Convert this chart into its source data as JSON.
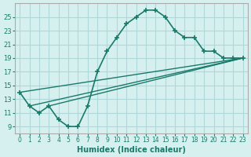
{
  "xlabel": "Humidex (Indice chaleur)",
  "bg_color": "#d6f0f0",
  "grid_color": "#b0d8d8",
  "line_color": "#1a7a6a",
  "xlim": [
    -0.5,
    23.5
  ],
  "ylim": [
    8,
    27
  ],
  "xticks": [
    0,
    1,
    2,
    3,
    4,
    5,
    6,
    7,
    8,
    9,
    10,
    11,
    12,
    13,
    14,
    15,
    16,
    17,
    18,
    19,
    20,
    21,
    22,
    23
  ],
  "yticks": [
    9,
    11,
    13,
    15,
    17,
    19,
    21,
    23,
    25
  ],
  "series1_x": [
    0,
    1,
    2,
    3,
    4,
    5,
    6,
    7,
    8,
    9,
    10,
    11,
    12,
    13,
    14,
    15,
    16,
    17,
    18,
    19,
    20,
    21,
    22,
    23
  ],
  "series1_y": [
    14,
    12,
    11,
    12,
    10,
    9,
    9,
    12,
    17,
    20,
    22,
    24,
    25,
    26,
    26,
    25,
    23,
    22,
    22,
    20,
    20,
    19,
    19,
    19
  ],
  "series3_x": [
    0,
    23
  ],
  "series3_y": [
    14,
    19
  ],
  "series4_x": [
    3,
    23
  ],
  "series4_y": [
    12,
    19
  ],
  "series5_x": [
    1,
    23
  ],
  "series5_y": [
    12,
    19
  ]
}
